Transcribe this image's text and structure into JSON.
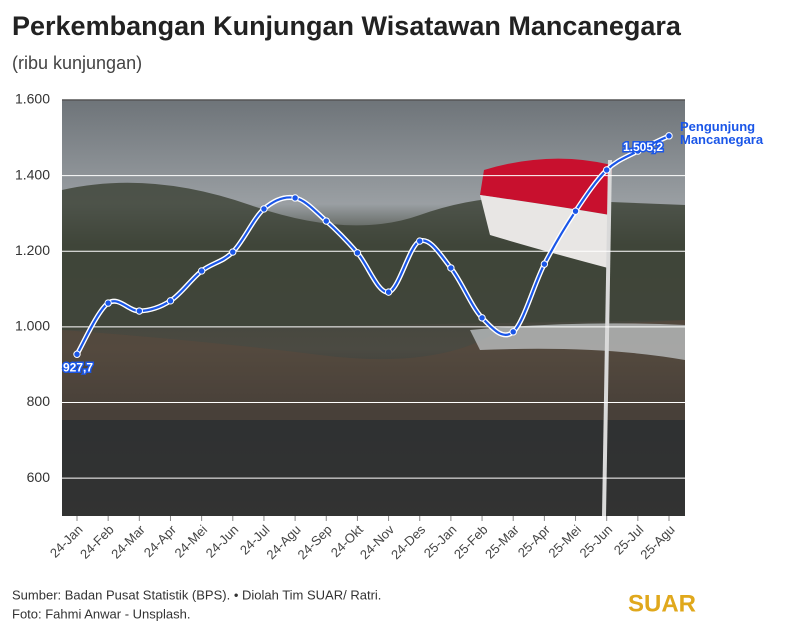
{
  "chart_data": {
    "type": "line",
    "title": "Perkembangan Kunjungan Wisatawan Mancanegara",
    "subtitle": "(ribu kunjungan)",
    "categories": [
      "24-Jan",
      "24-Feb",
      "24-Mar",
      "24-Apr",
      "24-Mei",
      "24-Jun",
      "24-Jul",
      "24-Agu",
      "24-Sep",
      "24-Okt",
      "24-Nov",
      "24-Des",
      "25-Jan",
      "25-Feb",
      "25-Mar",
      "25-Apr",
      "25-Mei",
      "25-Jun",
      "25-Jul",
      "25-Agu"
    ],
    "series": [
      {
        "name": "Pengunjung Mancanegara",
        "color": "#1a56e8",
        "values": [
          927.7,
          1063,
          1042,
          1069,
          1148,
          1198,
          1312,
          1341,
          1280,
          1196,
          1092,
          1227,
          1156,
          1024,
          987,
          1166,
          1306,
          1415,
          1465,
          1505.2
        ],
        "value_labels": [
          "927,7",
          null,
          null,
          null,
          null,
          null,
          null,
          null,
          null,
          null,
          null,
          null,
          null,
          null,
          null,
          null,
          null,
          null,
          null,
          "1.505,2"
        ]
      }
    ],
    "ylim": [
      500,
      1600
    ],
    "yticks": [
      {
        "value": 600,
        "label": "600"
      },
      {
        "value": 800,
        "label": "800"
      },
      {
        "value": 1000,
        "label": "1.000"
      },
      {
        "value": 1200,
        "label": "1.200"
      },
      {
        "value": 1400,
        "label": "1.400"
      },
      {
        "value": 1600,
        "label": "1.600"
      }
    ],
    "grid": true,
    "source": "Sumber: Badan Pusat Statistik (BPS). • Diolah Tim SUAR/ Ratri.",
    "photo_credit": "Foto: Fahmi Anwar - Unsplash.",
    "logo": "SUAR"
  }
}
